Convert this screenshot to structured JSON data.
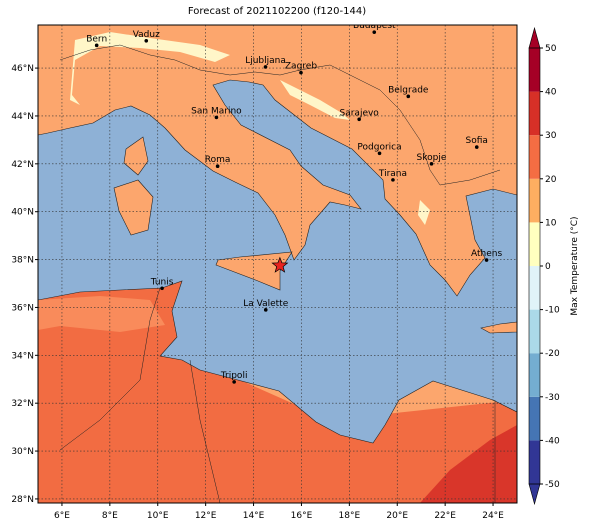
{
  "map": {
    "title": "Forecast of 2021102200 (f120-144)",
    "xlim": [
      5,
      25
    ],
    "ylim": [
      27.83,
      47.8
    ],
    "xticks": [
      {
        "value": 6,
        "label": "6°E"
      },
      {
        "value": 8,
        "label": "8°E"
      },
      {
        "value": 10,
        "label": "10°E"
      },
      {
        "value": 12,
        "label": "12°E"
      },
      {
        "value": 14,
        "label": "14°E"
      },
      {
        "value": 16,
        "label": "16°E"
      },
      {
        "value": 18,
        "label": "18°E"
      },
      {
        "value": 20,
        "label": "20°E"
      },
      {
        "value": 22,
        "label": "22°E"
      },
      {
        "value": 24,
        "label": "24°E"
      }
    ],
    "yticks": [
      {
        "value": 28,
        "label": "28°N"
      },
      {
        "value": 30,
        "label": "30°N"
      },
      {
        "value": 32,
        "label": "32°N"
      },
      {
        "value": 34,
        "label": "34°N"
      },
      {
        "value": 36,
        "label": "36°N"
      },
      {
        "value": 38,
        "label": "38°N"
      },
      {
        "value": 40,
        "label": "40°N"
      },
      {
        "value": 42,
        "label": "42°N"
      },
      {
        "value": 44,
        "label": "44°N"
      },
      {
        "value": 46,
        "label": "46°N"
      }
    ],
    "grid": true,
    "cities": [
      {
        "name": "Bern",
        "lon": 7.45,
        "lat": 46.95
      },
      {
        "name": "Vaduz",
        "lon": 9.52,
        "lat": 47.14
      },
      {
        "name": "Budapest",
        "lon": 19.04,
        "lat": 47.5
      },
      {
        "name": "Ljubljana",
        "lon": 14.5,
        "lat": 46.05
      },
      {
        "name": "Zagreb",
        "lon": 15.98,
        "lat": 45.81
      },
      {
        "name": "Belgrade",
        "lon": 20.46,
        "lat": 44.82
      },
      {
        "name": "San Marino",
        "lon": 12.45,
        "lat": 43.94
      },
      {
        "name": "Sarajevo",
        "lon": 18.41,
        "lat": 43.86
      },
      {
        "name": "Sofia",
        "lon": 23.32,
        "lat": 42.7
      },
      {
        "name": "Roma",
        "lon": 12.5,
        "lat": 41.9
      },
      {
        "name": "Podgorica",
        "lon": 19.26,
        "lat": 42.44
      },
      {
        "name": "Skopje",
        "lon": 21.43,
        "lat": 42.0
      },
      {
        "name": "Tirana",
        "lon": 19.82,
        "lat": 41.33
      },
      {
        "name": "Athens",
        "lon": 23.73,
        "lat": 37.98
      },
      {
        "name": "Tunis",
        "lon": 10.18,
        "lat": 36.8
      },
      {
        "name": "La Valette",
        "lon": 14.51,
        "lat": 35.9
      },
      {
        "name": "Tripoli",
        "lon": 13.19,
        "lat": 32.89
      }
    ],
    "marker": {
      "lon": 15.1,
      "lat": 37.75,
      "color": "#e8221e"
    },
    "colorbar": {
      "label": "Max Temperature (°C)",
      "ticks": [
        -50,
        -40,
        -30,
        -20,
        -10,
        0,
        10,
        20,
        30,
        40,
        50
      ],
      "colors": [
        "#313695",
        "#4575b4",
        "#74add1",
        "#abd9e9",
        "#e0f3f8",
        "#ffffbf",
        "#fdae61",
        "#f46d43",
        "#d73027",
        "#a50026"
      ]
    }
  }
}
